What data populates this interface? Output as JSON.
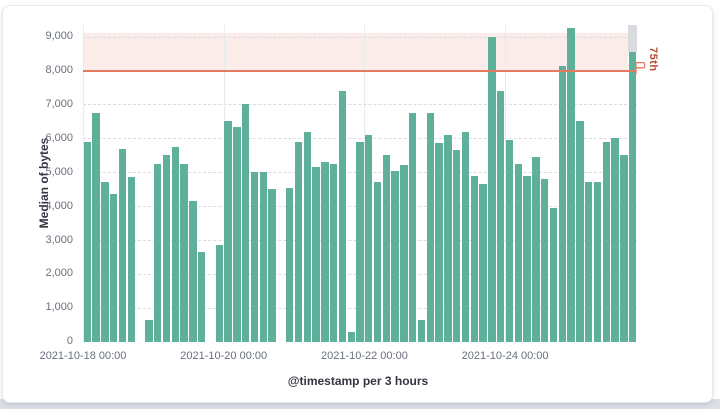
{
  "chart_data": {
    "type": "bar",
    "title": "",
    "ylabel": "Median of bytes",
    "xlabel": "@timestamp per 3 hours",
    "x_start": "2021-10-18 00:00",
    "bucket_hours": 3,
    "x_tick_labels": [
      "2021-10-18 00:00",
      "2021-10-20 00:00",
      "2021-10-22 00:00",
      "2021-10-24 00:00"
    ],
    "x_tick_slots": [
      0,
      16,
      32,
      48
    ],
    "y_tick_labels": [
      "0",
      "1,000",
      "2,000",
      "3,000",
      "4,000",
      "5,000",
      "6,000",
      "7,000",
      "8,000",
      "9,000"
    ],
    "y_tick_values": [
      0,
      1000,
      2000,
      3000,
      4000,
      5000,
      6000,
      7000,
      8000,
      9000
    ],
    "ylim": [
      0,
      9300
    ],
    "grid": true,
    "legend": "none",
    "values": [
      5900,
      6750,
      4700,
      4350,
      5700,
      4850,
      null,
      650,
      5250,
      5500,
      5750,
      5250,
      4150,
      2650,
      null,
      2850,
      6500,
      6350,
      7000,
      5000,
      5000,
      4500,
      null,
      4550,
      5900,
      6200,
      5150,
      5300,
      5250,
      7400,
      300,
      5900,
      6100,
      4700,
      5500,
      5050,
      5200,
      6750,
      650,
      6750,
      5850,
      6100,
      5650,
      6200,
      4900,
      4650,
      9000,
      7400,
      5950,
      5250,
      4900,
      5450,
      4800,
      3950,
      8150,
      9250,
      6500,
      4700,
      4700,
      5900,
      6000,
      5500,
      8550
    ],
    "threshold": {
      "value": 8000,
      "label": "75th",
      "shaded_above_to": 9100
    },
    "highlighted_slot": 62,
    "colors": {
      "bar": "#5eb09a",
      "threshold_line": "#e47a5f",
      "threshold_label": "#b64a33",
      "threshold_region": "rgba(231,102,76,0.12)",
      "highlight_band": "#d9dbde"
    }
  }
}
